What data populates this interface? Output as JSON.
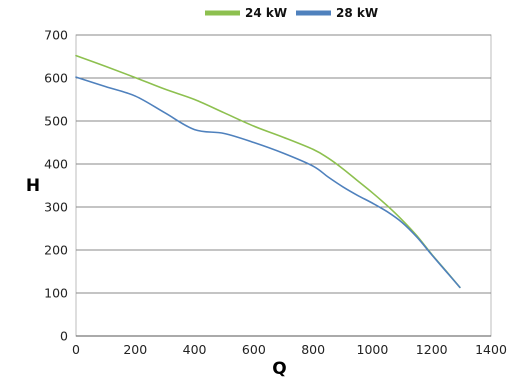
{
  "chart_data": {
    "type": "line",
    "title": "",
    "xlabel": "Q",
    "ylabel": "H",
    "xlim": [
      0,
      1400
    ],
    "ylim": [
      0,
      700
    ],
    "xticks": [
      0,
      200,
      400,
      600,
      800,
      1000,
      1200,
      1400
    ],
    "yticks": [
      0,
      100,
      200,
      300,
      400,
      500,
      600,
      700
    ],
    "grid": "horizontal",
    "legend_position": "top",
    "series": [
      {
        "name": "24 kW",
        "color": "#8dc04f",
        "x": [
          0,
          100,
          200,
          300,
          400,
          500,
          600,
          700,
          800,
          850,
          900,
          950,
          1000,
          1050,
          1100,
          1150,
          1200,
          1250,
          1295
        ],
        "y": [
          652,
          627,
          601,
          574,
          550,
          519,
          488,
          462,
          434,
          414,
          389,
          361,
          333,
          303,
          270,
          233,
          190,
          150,
          113
        ]
      },
      {
        "name": "28 kW",
        "color": "#4f81bd",
        "x": [
          0,
          100,
          200,
          300,
          400,
          500,
          600,
          700,
          800,
          850,
          900,
          950,
          1000,
          1050,
          1100,
          1150,
          1200,
          1250,
          1295
        ],
        "y": [
          602,
          580,
          558,
          519,
          480,
          471,
          450,
          425,
          395,
          370,
          347,
          327,
          309,
          289,
          264,
          230,
          189,
          149,
          113
        ]
      }
    ]
  }
}
